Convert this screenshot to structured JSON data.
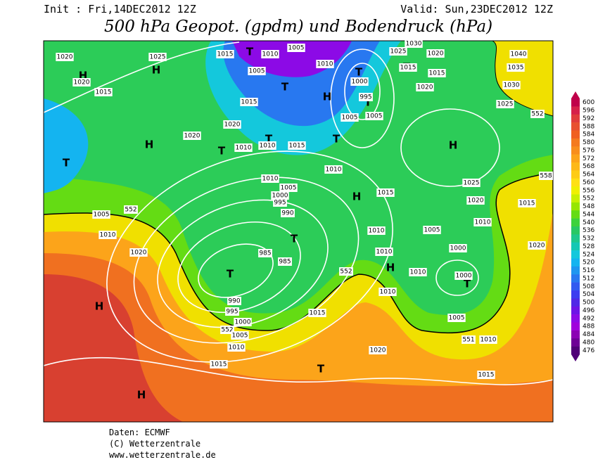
{
  "header": {
    "init": "Init : Fri,14DEC2012 12Z",
    "valid": "Valid: Sun,23DEC2012 12Z",
    "title": "500 hPa Geopot. (gpdm) und Bodendruck (hPa)"
  },
  "colorbar": {
    "ticks": [
      600,
      596,
      592,
      588,
      584,
      580,
      576,
      572,
      568,
      564,
      560,
      556,
      552,
      548,
      544,
      540,
      536,
      532,
      528,
      524,
      520,
      516,
      512,
      508,
      504,
      500,
      496,
      492,
      488,
      484,
      480,
      476
    ],
    "colors": [
      "#c0004a",
      "#d6204a",
      "#e03c3c",
      "#e85030",
      "#f06020",
      "#f47a1e",
      "#f88e1c",
      "#fca41a",
      "#fdb818",
      "#fecc16",
      "#ffe014",
      "#f0f000",
      "#c8f000",
      "#96e600",
      "#64dc14",
      "#3cd23c",
      "#28c864",
      "#1ec88c",
      "#14c8b4",
      "#14c8dc",
      "#14b4f0",
      "#1e96f0",
      "#2878f0",
      "#325af0",
      "#3c3cf0",
      "#5028e6",
      "#6e14e6",
      "#8c0ae6",
      "#a000dc",
      "#8c00b4",
      "#6e0096",
      "#500078"
    ]
  },
  "map": {
    "centers": [
      "H",
      "H",
      "H",
      "T",
      "H",
      "T",
      "T",
      "T",
      "H",
      "T",
      "T",
      "T",
      "T",
      "T",
      "H",
      "T",
      "T",
      "H",
      "T",
      "H",
      "H",
      "T"
    ],
    "isobars": [
      "1020",
      "1025",
      "1015",
      "1010",
      "1005",
      "1005",
      "1010",
      "1030",
      "1025",
      "1020",
      "1015",
      "1015",
      "1020",
      "1000",
      "995",
      "1005",
      "1005",
      "1040",
      "1035",
      "1030",
      "1025",
      "552",
      "1020",
      "1015",
      "1015",
      "1020",
      "1020",
      "1010",
      "1010",
      "1015",
      "1010",
      "1010",
      "1005",
      "1000",
      "995",
      "990",
      "1015",
      "1025",
      "1020",
      "558",
      "1015",
      "1010",
      "552",
      "1005",
      "1010",
      "1020",
      "1010",
      "1005",
      "1000",
      "1010",
      "1010",
      "1020",
      "985",
      "985",
      "1000",
      "1010",
      "552",
      "990",
      "995",
      "1000",
      "552",
      "1005",
      "1015",
      "1005",
      "551",
      "1010",
      "1010",
      "1020",
      "1015",
      "1015"
    ]
  },
  "footer": {
    "source": "Daten: ECMWF",
    "copyright": "(C) Wetterzentrale",
    "url": "www.wetterzentrale.de"
  }
}
